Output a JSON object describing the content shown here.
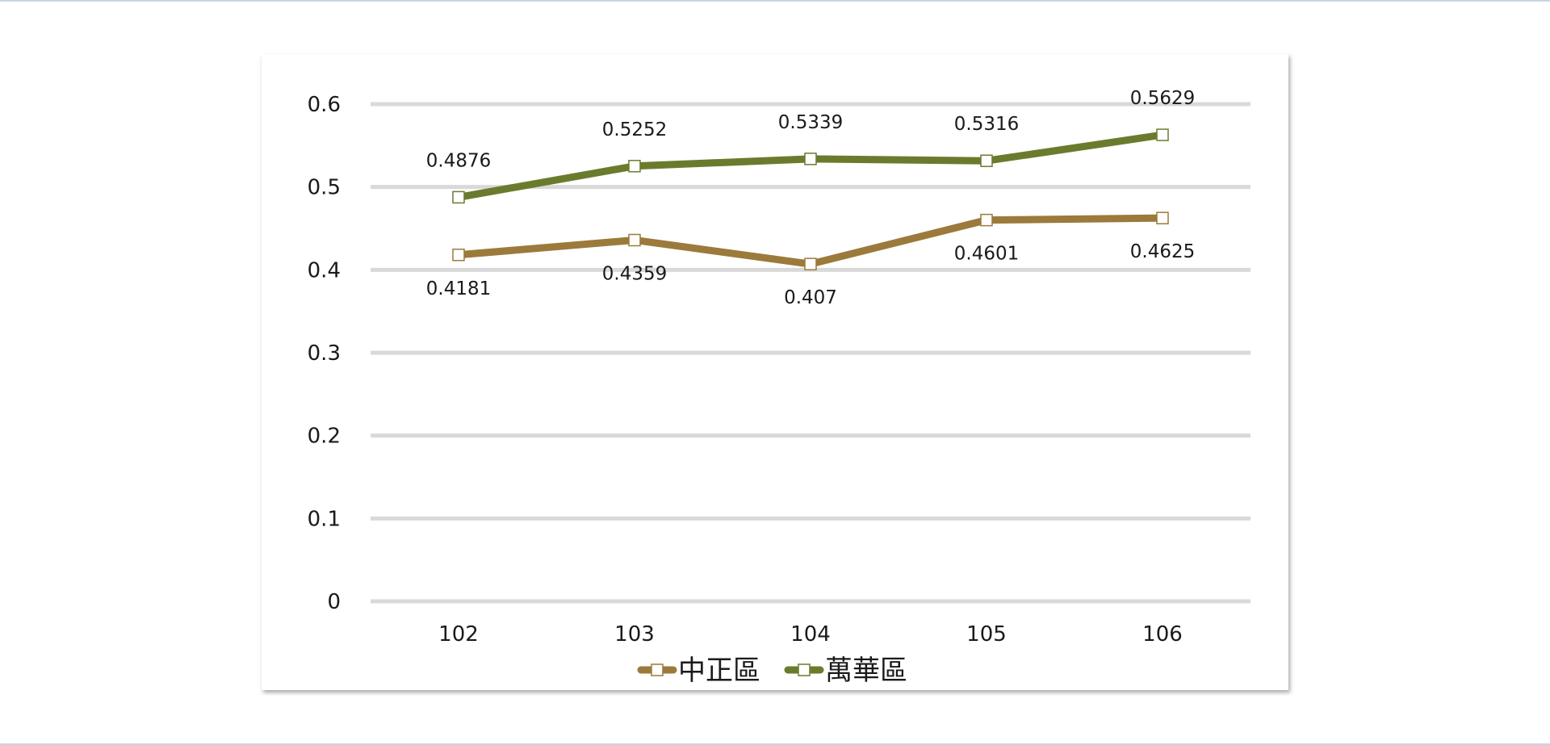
{
  "chart_data": {
    "type": "line",
    "categories": [
      "102",
      "103",
      "104",
      "105",
      "106"
    ],
    "ylim": [
      0,
      0.6
    ],
    "yticks": [
      "0",
      "0.1",
      "0.2",
      "0.3",
      "0.4",
      "0.5",
      "0.6"
    ],
    "grid": true,
    "legend_position": "bottom",
    "series": [
      {
        "name": "中正區",
        "color": "#9b7a3b",
        "values": [
          0.4181,
          0.4359,
          0.407,
          0.4601,
          0.4625
        ],
        "labels": [
          "0.4181",
          "0.4359",
          "0.407",
          "0.4601",
          "0.4625"
        ],
        "label_position": "below"
      },
      {
        "name": "萬華區",
        "color": "#6b7b2e",
        "values": [
          0.4876,
          0.5252,
          0.5339,
          0.5316,
          0.5629
        ],
        "labels": [
          "0.4876",
          "0.5252",
          "0.5339",
          "0.5316",
          "0.5629"
        ],
        "label_position": "above"
      }
    ],
    "gridline_color": "#d9d9d9",
    "marker": "white-square"
  }
}
